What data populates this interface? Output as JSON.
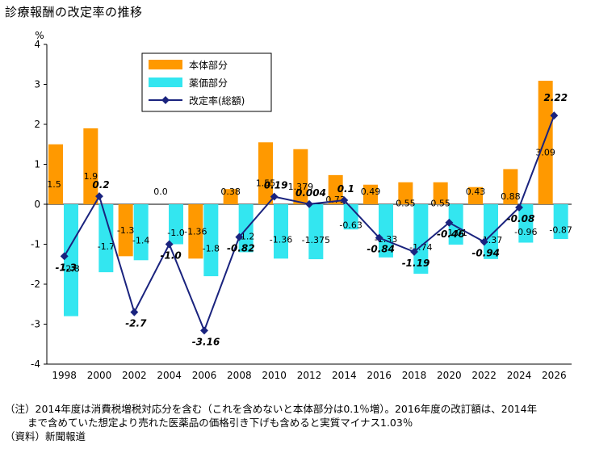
{
  "title": "診療報酬の改定率の推移",
  "notes": {
    "line1": "（注）2014年度は消費税増税対応分を含む（これを含めないと本体部分は0.1％増）。2016年度の改訂額は、2014年",
    "line2": "まで含めていた想定より売れた医薬品の価格引き下げも含めると実質マイナス1.03％",
    "line3": "（資料）新聞報道"
  },
  "colors": {
    "honntai": "#ff9900",
    "yakka": "#33e6f0",
    "kaitei": "#1a237e"
  },
  "chart_data": {
    "type": "bar",
    "unit_label": "%",
    "ylim": [
      -4,
      4
    ],
    "yticks": [
      4,
      3,
      2,
      1,
      0,
      -1,
      -2,
      -3,
      -4
    ],
    "categories": [
      "1998",
      "2000",
      "2002",
      "2004",
      "2006",
      "2008",
      "2010",
      "2012",
      "2014",
      "2016",
      "2018",
      "2020",
      "2022",
      "2024",
      "2026"
    ],
    "legend_position": "top-left",
    "series": [
      {
        "name": "本体部分",
        "kind": "bar",
        "values": [
          1.5,
          1.9,
          -1.3,
          0.0,
          -1.36,
          0.38,
          1.55,
          1.379,
          0.73,
          0.49,
          0.55,
          0.55,
          0.43,
          0.88,
          3.09
        ],
        "labels": [
          "1.5",
          "1.9",
          "-1.3",
          "0.0",
          "-1.36",
          "0.38",
          "1.55",
          "1.379",
          "0.73",
          "0.49",
          "0.55",
          "0.55",
          "0.43",
          "0.88",
          "3.09"
        ]
      },
      {
        "name": "薬価部分",
        "kind": "bar",
        "values": [
          -2.8,
          -1.7,
          -1.4,
          -1.0,
          -1.8,
          -1.2,
          -1.36,
          -1.375,
          -0.63,
          -1.33,
          -1.74,
          -1.01,
          -1.37,
          -0.96,
          -0.87
        ],
        "labels": [
          "-2.8",
          "-1.7",
          "-1.4",
          "-1.0",
          "-1.8",
          "-1.2",
          "-1.36",
          "-1.375",
          "-0.63",
          "-1.33",
          "-1.74",
          "-1.01",
          "-1.37",
          "-0.96",
          "-0.87"
        ]
      },
      {
        "name": "改定率(総額)",
        "kind": "line",
        "values": [
          -1.3,
          0.2,
          -2.7,
          -1.0,
          -3.16,
          -0.82,
          0.19,
          0.004,
          0.1,
          -0.84,
          -1.19,
          -0.46,
          -0.94,
          -0.08,
          2.22
        ],
        "labels": [
          "-1.3",
          "0.2",
          "-2.7",
          "-1.0",
          "-3.16",
          "-0.82",
          "0.19",
          "0.004",
          "0.1",
          "-0.84",
          "-1.19",
          "-0.46",
          "-0.94",
          "-0.08",
          "2.22"
        ]
      }
    ]
  }
}
